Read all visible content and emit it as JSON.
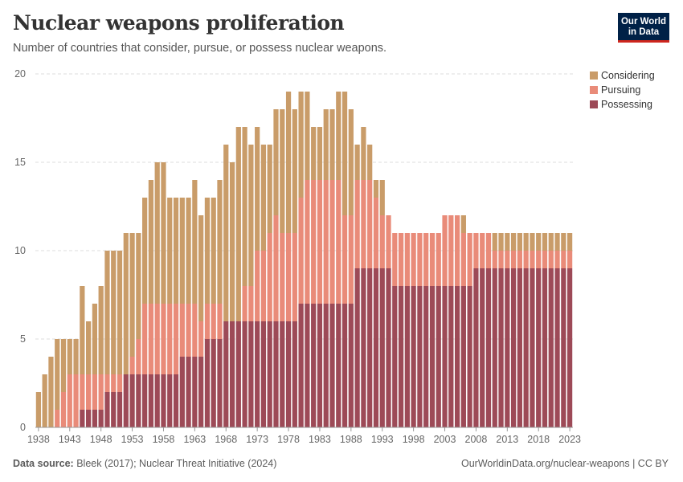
{
  "header": {
    "title": "Nuclear weapons proliferation",
    "subtitle": "Number of countries that consider, pursue, or possess nuclear weapons."
  },
  "logo": {
    "line1": "Our World",
    "line2": "in Data"
  },
  "footer": {
    "source_label": "Data source:",
    "source_text": "Bleek (2017); Nuclear Threat Initiative (2024)",
    "url_license": "OurWorldinData.org/nuclear-weapons | CC BY"
  },
  "colors": {
    "considering": "#c99c69",
    "pursuing": "#e98b79",
    "possessing": "#9d4a57",
    "grid": "#dddddd"
  },
  "chart_data": {
    "type": "bar",
    "stacked": true,
    "x_start": 1938,
    "x_end": 2023,
    "ylim": [
      0,
      20
    ],
    "y_ticks": [
      0,
      5,
      10,
      15,
      20
    ],
    "x_ticks": [
      1938,
      1943,
      1948,
      1953,
      1958,
      1963,
      1968,
      1973,
      1978,
      1983,
      1988,
      1993,
      1998,
      2003,
      2008,
      2013,
      2018,
      2023
    ],
    "legend_position": "top-right",
    "grid": true,
    "series": [
      {
        "name": "Possessing",
        "values": [
          0,
          0,
          0,
          0,
          0,
          0,
          0,
          1,
          1,
          1,
          1,
          2,
          2,
          2,
          3,
          3,
          3,
          3,
          3,
          3,
          3,
          3,
          3,
          4,
          4,
          4,
          4,
          5,
          5,
          5,
          6,
          6,
          6,
          6,
          6,
          6,
          6,
          6,
          6,
          6,
          6,
          6,
          7,
          7,
          7,
          7,
          7,
          7,
          7,
          7,
          7,
          9,
          9,
          9,
          9,
          9,
          9,
          8,
          8,
          8,
          8,
          8,
          8,
          8,
          8,
          8,
          8,
          8,
          8,
          8,
          9,
          9,
          9,
          9,
          9,
          9,
          9,
          9,
          9,
          9,
          9,
          9,
          9,
          9,
          9,
          9
        ]
      },
      {
        "name": "Pursuing",
        "values": [
          0,
          0,
          0,
          1,
          2,
          3,
          3,
          2,
          2,
          2,
          2,
          1,
          1,
          1,
          0,
          1,
          2,
          4,
          4,
          4,
          4,
          4,
          4,
          3,
          3,
          3,
          2,
          2,
          2,
          2,
          0,
          0,
          0,
          2,
          2,
          4,
          4,
          5,
          6,
          5,
          5,
          5,
          6,
          7,
          7,
          7,
          7,
          7,
          7,
          5,
          5,
          5,
          5,
          5,
          4,
          3,
          3,
          3,
          3,
          3,
          3,
          3,
          3,
          3,
          3,
          4,
          4,
          4,
          3,
          3,
          2,
          2,
          2,
          1,
          1,
          1,
          1,
          1,
          1,
          1,
          1,
          1,
          1,
          1,
          1,
          1
        ]
      },
      {
        "name": "Considering",
        "values": [
          2,
          3,
          4,
          4,
          3,
          2,
          2,
          5,
          3,
          4,
          5,
          7,
          7,
          7,
          8,
          7,
          6,
          6,
          7,
          8,
          8,
          6,
          6,
          6,
          6,
          7,
          6,
          6,
          6,
          7,
          10,
          9,
          11,
          9,
          8,
          7,
          6,
          5,
          6,
          7,
          8,
          7,
          6,
          5,
          3,
          3,
          4,
          4,
          5,
          7,
          6,
          2,
          3,
          2,
          1,
          2,
          0,
          0,
          0,
          0,
          0,
          0,
          0,
          0,
          0,
          0,
          0,
          0,
          1,
          0,
          0,
          0,
          0,
          1,
          1,
          1,
          1,
          1,
          1,
          1,
          1,
          1,
          1,
          1,
          1,
          1
        ]
      }
    ]
  }
}
